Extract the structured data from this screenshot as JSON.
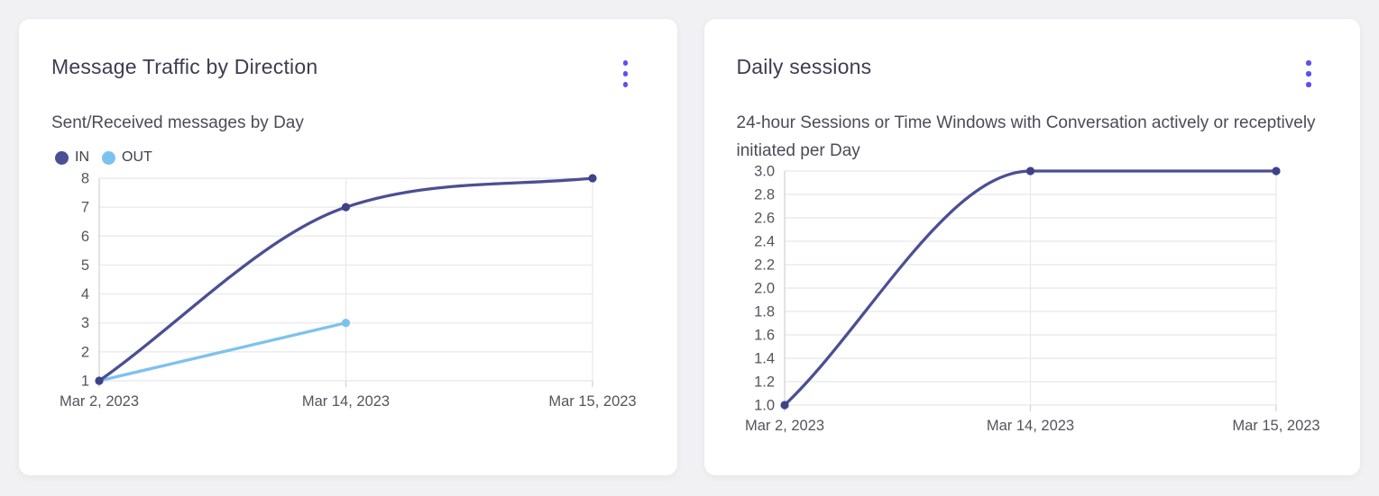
{
  "theme": {
    "page_bg": "#f1f1f4",
    "card_bg": "#ffffff",
    "menu_dot_color": "#5a4ff2",
    "grid_color": "#e8e8eb",
    "axis_color": "#d4d4d9",
    "tick_label_color": "#54545e",
    "title_color": "#3d3d52",
    "subtitle_color": "#4b4b58"
  },
  "cards": [
    {
      "title": "Message Traffic by Direction",
      "subtitle": "Sent/Received messages by Day"
    },
    {
      "title": "Daily sessions",
      "subtitle": "24-hour Sessions or Time Windows with Conversation actively or receptively initiated per Day"
    }
  ],
  "chart_data": [
    {
      "type": "line",
      "title": "Sent/Received messages by Day",
      "categories": [
        "Mar 2, 2023",
        "Mar 14, 2023",
        "Mar 15, 2023"
      ],
      "series": [
        {
          "name": "IN",
          "color": "#4b4f93",
          "point_color": "#3e4289",
          "values": [
            1,
            7,
            8
          ]
        },
        {
          "name": "OUT",
          "color": "#7cc2f0",
          "point_color": "#7cc2f0",
          "values": [
            1,
            3,
            null
          ]
        }
      ],
      "ylim": [
        1,
        8
      ],
      "ytick_step": 1,
      "ytick_decimals": 0,
      "grid": true,
      "legend_position": "top-left",
      "curve": "monotone"
    },
    {
      "type": "line",
      "title": "Daily sessions",
      "categories": [
        "Mar 2, 2023",
        "Mar 14, 2023",
        "Mar 15, 2023"
      ],
      "series": [
        {
          "name": "Daily sessions",
          "color": "#4b4f93",
          "point_color": "#3e4289",
          "values": [
            1,
            3,
            3
          ]
        }
      ],
      "ylim": [
        1,
        3
      ],
      "ytick_step": 0.2,
      "ytick_decimals": 1,
      "grid": true,
      "legend_position": "none",
      "curve": "monotone"
    }
  ]
}
